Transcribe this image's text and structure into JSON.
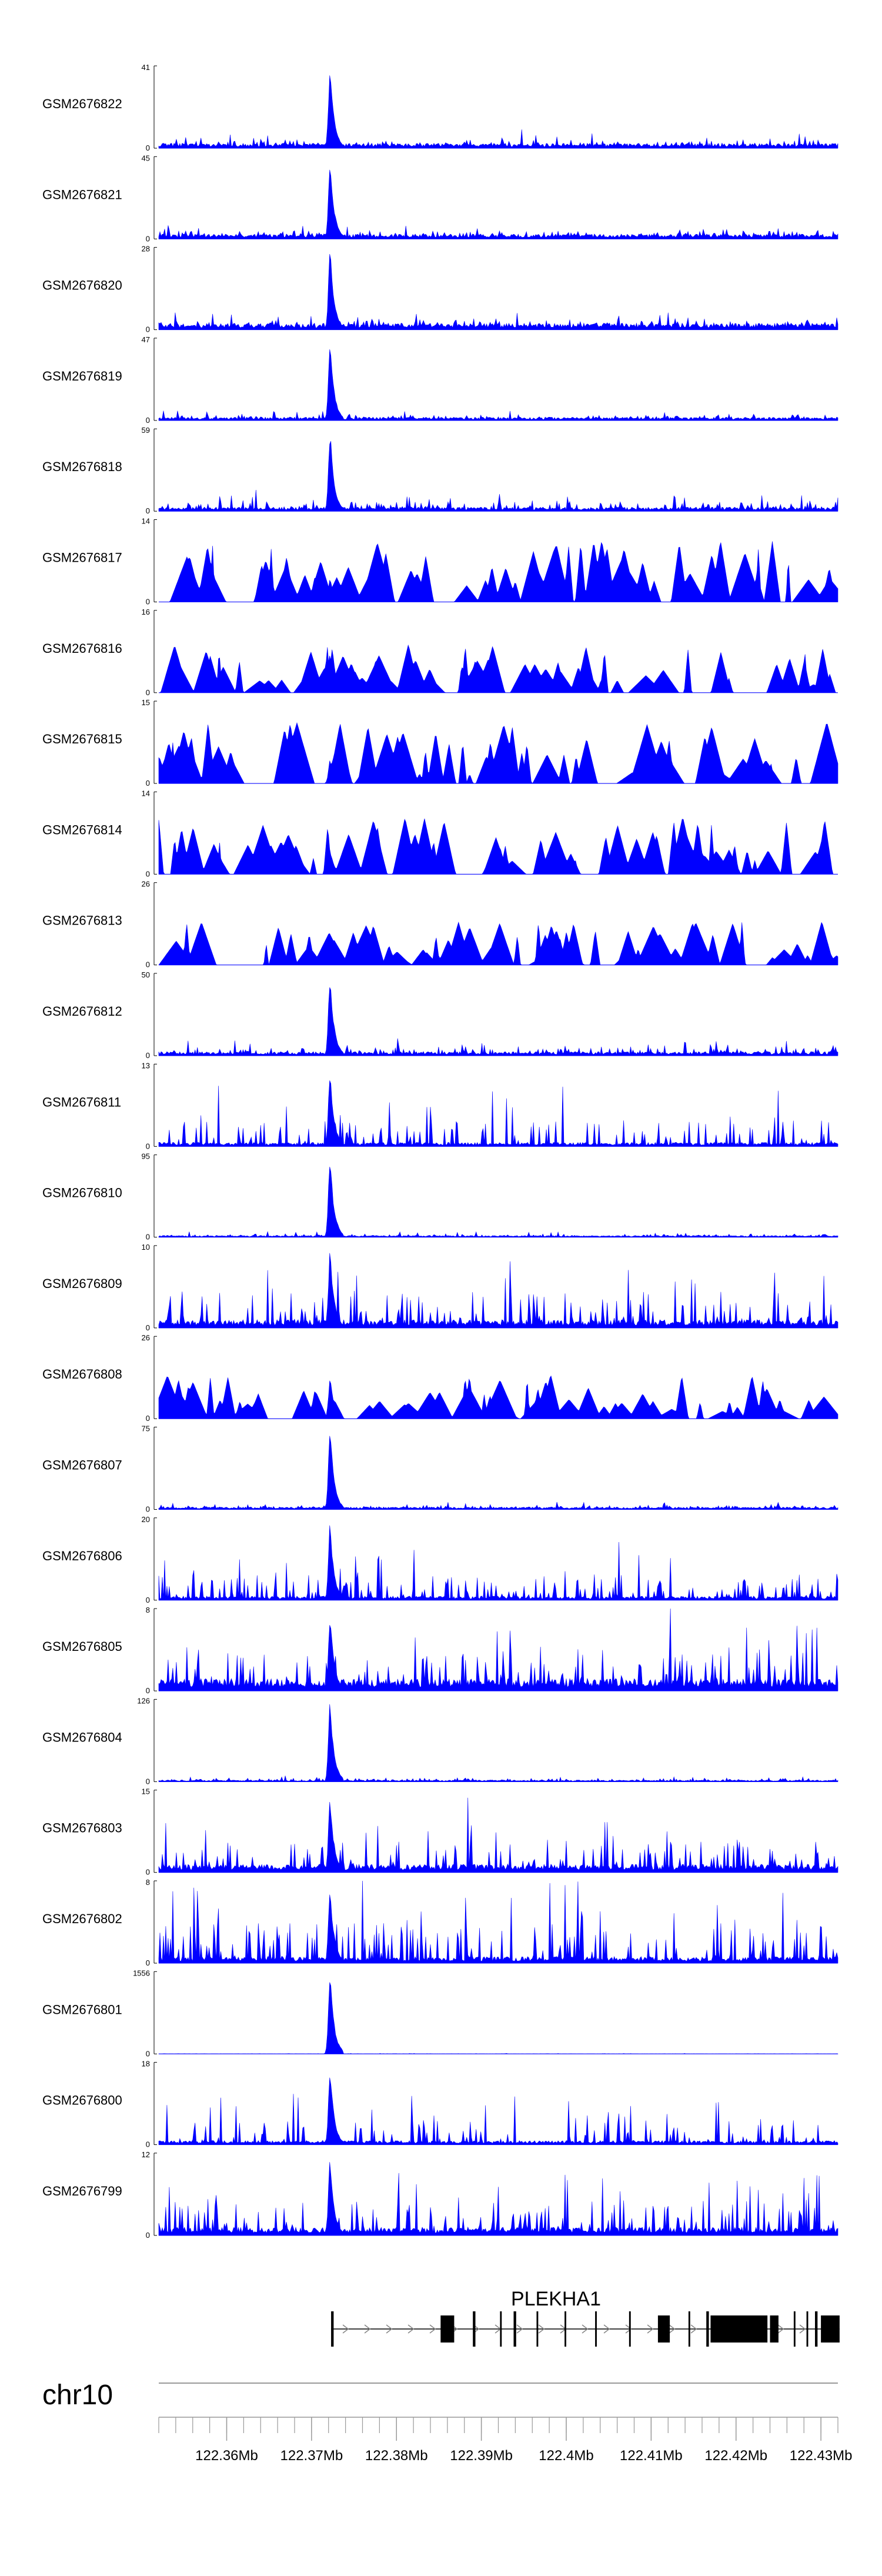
{
  "chart_data": {
    "type": "area",
    "chromosome": "chr10",
    "xlim": [
      122.352,
      122.432
    ],
    "x_ticks": [
      {
        "value": 122.36,
        "label": "122.36Mb"
      },
      {
        "value": 122.37,
        "label": "122.37Mb"
      },
      {
        "value": 122.38,
        "label": "122.38Mb"
      },
      {
        "value": 122.39,
        "label": "122.39Mb"
      },
      {
        "value": 122.4,
        "label": "122.4Mb"
      },
      {
        "value": 122.41,
        "label": "122.41Mb"
      },
      {
        "value": 122.42,
        "label": "122.42Mb"
      },
      {
        "value": 122.43,
        "label": "122.43Mb"
      }
    ],
    "gene": {
      "name": "PLEKHA1",
      "start": 122.3723,
      "end": 122.4322,
      "exons": [
        [
          122.3723,
          122.3726
        ],
        [
          122.3852,
          122.3868
        ],
        [
          122.389,
          122.3893
        ],
        [
          122.3922,
          122.3924
        ],
        [
          122.3938,
          122.3941
        ],
        [
          122.3965,
          122.3967
        ],
        [
          122.3998,
          122.4
        ],
        [
          122.4034,
          122.4036
        ],
        [
          122.4074,
          122.4076
        ],
        [
          122.4108,
          122.4122
        ],
        [
          122.4144,
          122.4146
        ],
        [
          122.4165,
          122.4168
        ],
        [
          122.417,
          122.4237
        ],
        [
          122.424,
          122.425
        ],
        [
          122.4268,
          122.427
        ],
        [
          122.4283,
          122.4285
        ],
        [
          122.4293,
          122.4296
        ],
        [
          122.43,
          122.4322
        ]
      ]
    },
    "tracks": [
      {
        "name": "GSM2676822",
        "ymax": 41,
        "ymin": 0,
        "bg": 0.06,
        "mode": "peak",
        "peakH": 1.0,
        "noise": 0.12,
        "seed": 11
      },
      {
        "name": "GSM2676821",
        "ymax": 45,
        "ymin": 0,
        "bg": 0.06,
        "mode": "peak",
        "peakH": 1.0,
        "noise": 0.12,
        "seed": 12
      },
      {
        "name": "GSM2676820",
        "ymax": 28,
        "ymin": 0,
        "bg": 0.08,
        "mode": "peak",
        "peakH": 1.0,
        "noise": 0.14,
        "seed": 13
      },
      {
        "name": "GSM2676819",
        "ymax": 47,
        "ymin": 0,
        "bg": 0.04,
        "mode": "peak",
        "peakH": 1.0,
        "noise": 0.08,
        "seed": 14
      },
      {
        "name": "GSM2676818",
        "ymax": 59,
        "ymin": 0,
        "bg": 0.05,
        "mode": "peak",
        "peakH": 1.0,
        "noise": 0.16,
        "seed": 15
      },
      {
        "name": "GSM2676817",
        "ymax": 14,
        "ymin": 0,
        "bg": 0.0,
        "mode": "spiky",
        "peakH": 0.3,
        "noise": 0.75,
        "seed": 16
      },
      {
        "name": "GSM2676816",
        "ymax": 16,
        "ymin": 0,
        "bg": 0.0,
        "mode": "spiky",
        "peakH": 0.5,
        "noise": 0.6,
        "seed": 17
      },
      {
        "name": "GSM2676815",
        "ymax": 15,
        "ymin": 0,
        "bg": 0.0,
        "mode": "spiky",
        "peakH": 0.3,
        "noise": 0.75,
        "seed": 18
      },
      {
        "name": "GSM2676814",
        "ymax": 14,
        "ymin": 0,
        "bg": 0.0,
        "mode": "spiky",
        "peakH": 0.3,
        "noise": 0.7,
        "seed": 19
      },
      {
        "name": "GSM2676813",
        "ymax": 26,
        "ymin": 0,
        "bg": 0.0,
        "mode": "spiky",
        "peakH": 0.3,
        "noise": 0.55,
        "seed": 20
      },
      {
        "name": "GSM2676812",
        "ymax": 50,
        "ymin": 0,
        "bg": 0.05,
        "mode": "peak",
        "peakH": 1.0,
        "noise": 0.14,
        "seed": 21
      },
      {
        "name": "GSM2676811",
        "ymax": 13,
        "ymin": 0,
        "bg": 0.05,
        "mode": "dense",
        "peakH": 0.95,
        "noise": 0.55,
        "seed": 22
      },
      {
        "name": "GSM2676810",
        "ymax": 95,
        "ymin": 0,
        "bg": 0.02,
        "mode": "peak",
        "peakH": 1.0,
        "noise": 0.05,
        "seed": 23
      },
      {
        "name": "GSM2676809",
        "ymax": 10,
        "ymin": 0,
        "bg": 0.1,
        "mode": "dense",
        "peakH": 0.95,
        "noise": 0.75,
        "seed": 24
      },
      {
        "name": "GSM2676808",
        "ymax": 26,
        "ymin": 0,
        "bg": 0.0,
        "mode": "spiky",
        "peakH": 0.5,
        "noise": 0.55,
        "seed": 25
      },
      {
        "name": "GSM2676807",
        "ymax": 75,
        "ymin": 0,
        "bg": 0.03,
        "mode": "peak",
        "peakH": 1.0,
        "noise": 0.07,
        "seed": 26
      },
      {
        "name": "GSM2676806",
        "ymax": 20,
        "ymin": 0,
        "bg": 0.05,
        "mode": "dense",
        "peakH": 0.95,
        "noise": 0.55,
        "seed": 27
      },
      {
        "name": "GSM2676805",
        "ymax": 8,
        "ymin": 0,
        "bg": 0.15,
        "mode": "dense",
        "peakH": 0.95,
        "noise": 0.8,
        "seed": 28
      },
      {
        "name": "GSM2676804",
        "ymax": 126,
        "ymin": 0,
        "bg": 0.02,
        "mode": "peak",
        "peakH": 1.0,
        "noise": 0.06,
        "seed": 29
      },
      {
        "name": "GSM2676803",
        "ymax": 15,
        "ymin": 0,
        "bg": 0.1,
        "mode": "dense",
        "peakH": 0.95,
        "noise": 0.6,
        "seed": 30
      },
      {
        "name": "GSM2676802",
        "ymax": 8,
        "ymin": 0,
        "bg": 0.08,
        "mode": "dense",
        "peakH": 0.95,
        "noise": 0.9,
        "seed": 31
      },
      {
        "name": "GSM2676801",
        "ymax": 1556,
        "ymin": 0,
        "bg": 0.002,
        "mode": "peak",
        "peakH": 1.0,
        "noise": 0.005,
        "seed": 32
      },
      {
        "name": "GSM2676800",
        "ymax": 18,
        "ymin": 0,
        "bg": 0.05,
        "mode": "dense",
        "peakH": 0.95,
        "noise": 0.55,
        "seed": 33
      },
      {
        "name": "GSM2676799",
        "ymax": 12,
        "ymin": 0,
        "bg": 0.1,
        "mode": "dense",
        "peakH": 0.95,
        "noise": 0.7,
        "seed": 34
      }
    ],
    "peak_center": 122.3722,
    "track_color": "#0000ff",
    "gene_color": "#000000"
  }
}
